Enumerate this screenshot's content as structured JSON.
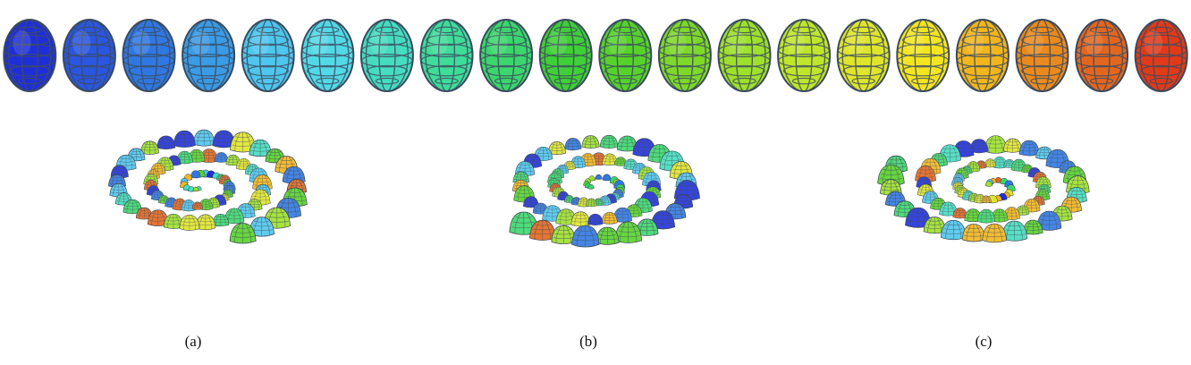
{
  "colormap": [
    "#1f2fd8",
    "#2a56e0",
    "#2f78e3",
    "#3a9be6",
    "#4ec6ee",
    "#52d9e6",
    "#45dcc0",
    "#3fdc9a",
    "#3bd66c",
    "#3fcf36",
    "#56d22a",
    "#7ed828",
    "#9ee02a",
    "#bfe62a",
    "#dfe52a",
    "#f5e51f",
    "#f2b51c",
    "#eb8a1c",
    "#e3661e",
    "#e13a18"
  ],
  "spiral_palette": [
    "#1f2fd8",
    "#2f78e3",
    "#4ec6ee",
    "#45dcc0",
    "#3bd66c",
    "#56d22a",
    "#9ee02a",
    "#dfe52a",
    "#f2b51c",
    "#e3661e"
  ],
  "captions": {
    "a": "(a)",
    "b": "(b)",
    "c": "(c)"
  }
}
